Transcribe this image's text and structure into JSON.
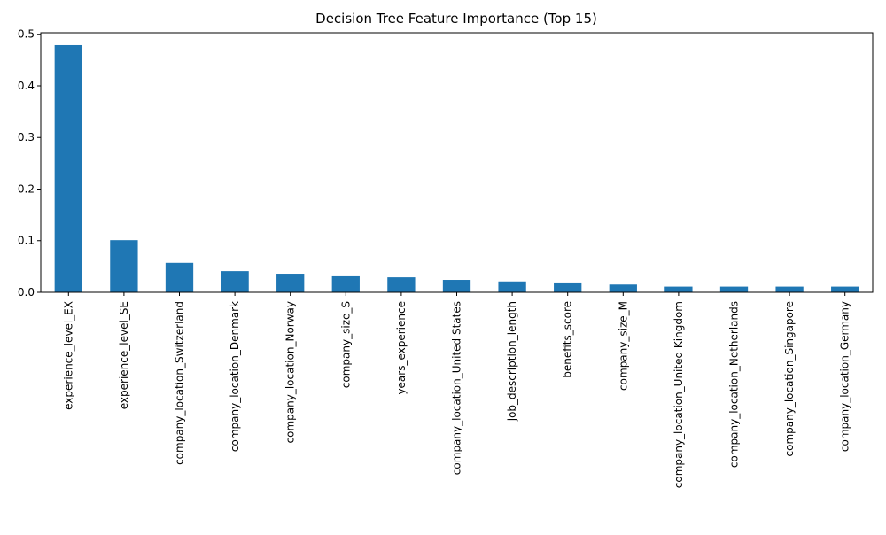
{
  "chart_data": {
    "type": "bar",
    "title": "Decision Tree Feature Importance (Top 15)",
    "xlabel": "",
    "ylabel": "",
    "categories": [
      "experience_level_EX",
      "experience_level_SE",
      "company_location_Switzerland",
      "company_location_Denmark",
      "company_location_Norway",
      "company_size_S",
      "years_experience",
      "company_location_United States",
      "job_description_length",
      "benefits_score",
      "company_size_M",
      "company_location_United Kingdom",
      "company_location_Netherlands",
      "company_location_Singapore",
      "company_location_Germany"
    ],
    "values": [
      0.479,
      0.101,
      0.057,
      0.041,
      0.036,
      0.031,
      0.029,
      0.024,
      0.021,
      0.019,
      0.015,
      0.011,
      0.011,
      0.011,
      0.011
    ],
    "ylim": [
      0,
      0.503
    ],
    "yticks": [
      0.0,
      0.1,
      0.2,
      0.3,
      0.4,
      0.5
    ],
    "ytick_labels": [
      "0.0",
      "0.1",
      "0.2",
      "0.3",
      "0.4",
      "0.5"
    ],
    "grid": false,
    "legend": "none",
    "bar_color": "#1f77b4"
  }
}
